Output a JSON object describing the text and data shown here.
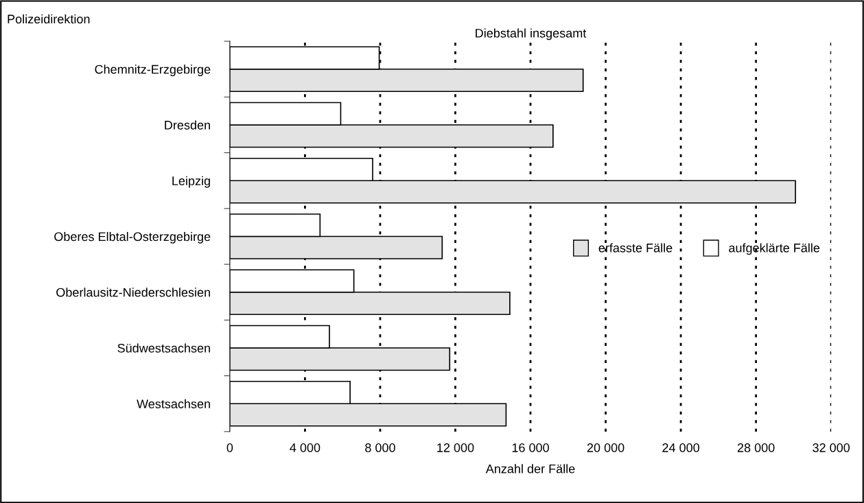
{
  "chart_data": {
    "type": "bar",
    "orientation": "horizontal",
    "title": "Diebstahl insgesamt",
    "ylabel": "Polizeidirektion",
    "xlabel": "Anzahl der Fälle",
    "categories": [
      "Chemnitz-Erzgebirge",
      "Dresden",
      "Leipzig",
      "Oberes Elbtal-Osterzgebirge",
      "Oberlausitz-Niederschlesien",
      "Südwestsachsen",
      "Westsachsen"
    ],
    "series": [
      {
        "name": "erfasste Fälle",
        "color": "#e3e3e3",
        "values": [
          18800,
          17200,
          30100,
          11300,
          14900,
          11700,
          14700
        ]
      },
      {
        "name": "aufgeklärte Fälle",
        "color": "#ffffff",
        "values": [
          7950,
          5900,
          7600,
          4800,
          6600,
          5300,
          6400
        ]
      }
    ],
    "xlim": [
      0,
      32000
    ],
    "xticks": [
      0,
      {
        "value": 4000,
        "label": "4 000"
      },
      {
        "value": 8000,
        "label": "8 000"
      },
      {
        "value": 12000,
        "label": "12 000"
      },
      {
        "value": 16000,
        "label": "16 000"
      },
      {
        "value": 20000,
        "label": "20 000"
      },
      {
        "value": 24000,
        "label": "24 000"
      },
      {
        "value": 28000,
        "label": "28 000"
      },
      {
        "value": 32000,
        "label": "32 000"
      }
    ],
    "grid": "x",
    "legend": "right"
  }
}
